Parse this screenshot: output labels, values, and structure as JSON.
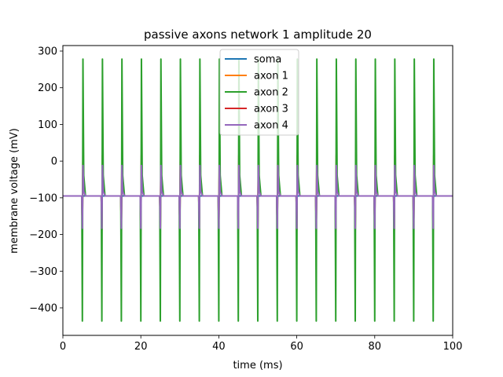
{
  "chart_data": {
    "type": "line",
    "title": "passive axons network 1 amplitude 20",
    "xlabel": "time (ms)",
    "ylabel": "membrane voltage (mV)",
    "xlim": [
      0,
      100
    ],
    "ylim": [
      -475,
      315
    ],
    "xticks": [
      0,
      20,
      40,
      60,
      80,
      100
    ],
    "yticks": [
      -400,
      -300,
      -200,
      -100,
      0,
      100,
      200,
      300
    ],
    "grid": false,
    "legend_position": "top-center",
    "spike_times_ms": [
      5,
      10,
      15,
      20,
      25,
      30,
      35,
      40,
      45,
      50,
      55,
      60,
      65,
      70,
      75,
      80,
      85,
      90,
      95
    ],
    "resting_potential_mV": -95,
    "series": [
      {
        "name": "soma",
        "color": "#1f77b4",
        "peak_mV": -95,
        "trough_mV": -95
      },
      {
        "name": "axon 1",
        "color": "#ff7f0e",
        "peak_mV": 15,
        "trough_mV": -188
      },
      {
        "name": "axon 2",
        "color": "#2ca02c",
        "peak_mV": 278,
        "trough_mV": -436
      },
      {
        "name": "axon 3",
        "color": "#d62728",
        "peak_mV": 17,
        "trough_mV": -188
      },
      {
        "name": "axon 4",
        "color": "#9467bd",
        "peak_mV": -12,
        "trough_mV": -183
      }
    ]
  }
}
